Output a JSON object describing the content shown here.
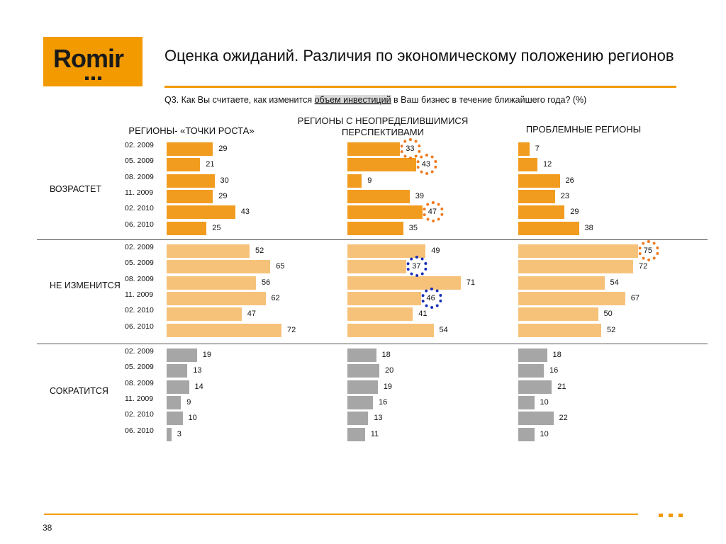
{
  "brand": {
    "logo_text": "Romir",
    "accent": "#f29a00"
  },
  "title": "Оценка ожиданий. Различия по экономическому положению регионов",
  "question": {
    "prefix": "Q3. Как Вы считаете, как изменится ",
    "highlight": "объем инвестиций",
    "suffix": " в Ваш бизнес в течение ближайшего года? (%)"
  },
  "chart_data": {
    "type": "bar",
    "orientation": "horizontal",
    "unit": "%",
    "columns": [
      "РЕГИОНЫ- «ТОЧКИ РОСТА»",
      "РЕГИОНЫ   С НЕОПРЕДЕЛИВШИМИСЯ ПЕРСПЕКТИВАМИ",
      "ПРОБЛЕМНЫЕ РЕГИОНЫ"
    ],
    "groups": [
      "ВОЗРАСТЕТ",
      "НЕ ИЗМЕНИТСЯ",
      "СОКРАТИТСЯ"
    ],
    "periods": [
      "02. 2009",
      "05. 2009",
      "08. 2009",
      "11. 2009",
      "02. 2010",
      "06. 2010"
    ],
    "values": [
      [
        [
          29,
          21,
          30,
          29,
          43,
          25
        ],
        [
          33,
          43,
          9,
          39,
          47,
          35
        ],
        [
          7,
          12,
          26,
          23,
          29,
          38
        ]
      ],
      [
        [
          52,
          65,
          56,
          62,
          47,
          72
        ],
        [
          49,
          37,
          71,
          46,
          41,
          54
        ],
        [
          75,
          72,
          54,
          67,
          50,
          52
        ]
      ],
      [
        [
          19,
          13,
          14,
          9,
          10,
          3
        ],
        [
          18,
          20,
          19,
          16,
          13,
          11
        ],
        [
          18,
          16,
          21,
          10,
          22,
          10
        ]
      ]
    ],
    "colors": {
      "grow": "#f29c1f",
      "same": "#f6c27a",
      "shrink": "#a6a6a6"
    },
    "highlights": [
      {
        "group": 0,
        "column": 1,
        "period": 0,
        "color": "orange"
      },
      {
        "group": 0,
        "column": 1,
        "period": 1,
        "color": "orange"
      },
      {
        "group": 0,
        "column": 1,
        "period": 4,
        "color": "orange"
      },
      {
        "group": 1,
        "column": 2,
        "period": 0,
        "color": "orange"
      },
      {
        "group": 1,
        "column": 1,
        "period": 1,
        "color": "blue"
      },
      {
        "group": 1,
        "column": 1,
        "period": 3,
        "color": "blue"
      }
    ]
  },
  "footer": {
    "page_number": "38"
  }
}
